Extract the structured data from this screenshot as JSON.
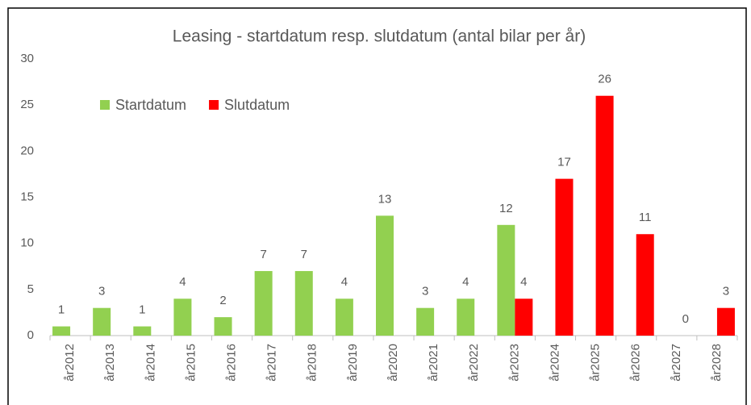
{
  "chart_data": {
    "type": "bar",
    "title": "Leasing - startdatum resp. slutdatum (antal bilar per år)",
    "categories": [
      "år2012",
      "år2013",
      "år2014",
      "år2015",
      "år2016",
      "år2017",
      "år2018",
      "år2019",
      "år2020",
      "år2021",
      "år2022",
      "år2023",
      "år2024",
      "år2025",
      "år2026",
      "år2027",
      "år2028"
    ],
    "series": [
      {
        "name": "Startdatum",
        "color": "#92d050",
        "values": [
          1,
          3,
          1,
          4,
          2,
          7,
          7,
          4,
          13,
          3,
          4,
          12,
          null,
          null,
          null,
          null,
          null
        ]
      },
      {
        "name": "Slutdatum",
        "color": "#ff0000",
        "values": [
          null,
          null,
          null,
          null,
          null,
          null,
          null,
          null,
          null,
          null,
          null,
          4,
          17,
          26,
          11,
          0,
          3
        ]
      }
    ],
    "ylim": [
      0,
      30
    ],
    "yticks": [
      0,
      5,
      10,
      15,
      20,
      25,
      30
    ],
    "grid": false,
    "legend": "upper left",
    "data_labels": true
  }
}
